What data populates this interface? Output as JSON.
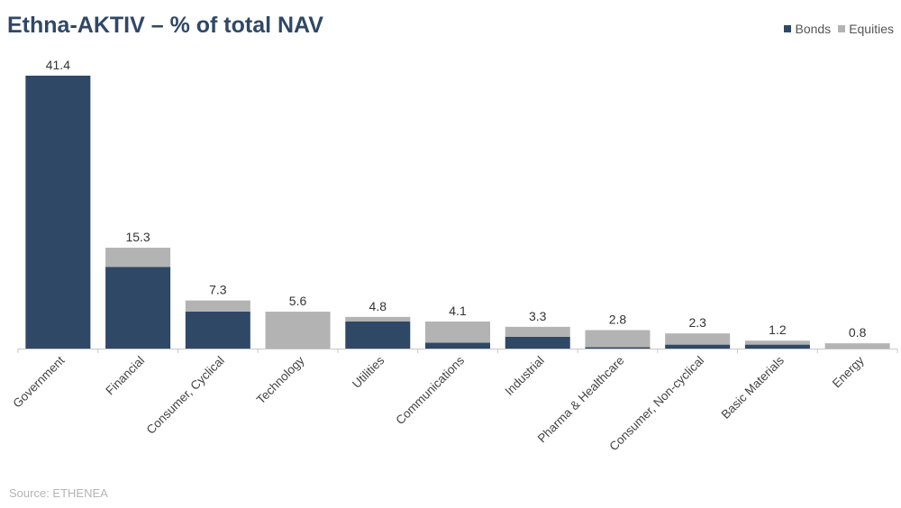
{
  "header": {
    "title": "Ethna-AKTIV – % of total NAV"
  },
  "footer": {
    "source": "Source: ETHENEA"
  },
  "colors": {
    "bonds": "#2f4866",
    "equities": "#b3b3b3",
    "title": "#2f4866"
  },
  "chart_data": {
    "type": "bar",
    "stacked": true,
    "title": "Ethna-AKTIV – % of total NAV",
    "categories": [
      "Government",
      "Financial",
      "Consumer, Cyclical",
      "Technology",
      "Utilities",
      "Communications",
      "Industrial",
      "Pharma & Healthcare",
      "Consumer, Non-cyclical",
      "Basic Materials",
      "Energy"
    ],
    "series": [
      {
        "name": "Bonds",
        "values": [
          41.4,
          12.4,
          5.6,
          0.0,
          4.1,
          0.9,
          1.8,
          0.2,
          0.6,
          0.6,
          0.0
        ]
      },
      {
        "name": "Equities",
        "values": [
          0.0,
          2.9,
          1.7,
          5.6,
          0.7,
          3.2,
          1.5,
          2.6,
          1.7,
          0.6,
          0.8
        ]
      }
    ],
    "totals": [
      "41.4",
      "15.3",
      "7.3",
      "5.6",
      "4.8",
      "4.1",
      "3.3",
      "2.8",
      "2.3",
      "1.2",
      "0.8"
    ],
    "ylim": [
      0,
      42
    ],
    "grid": false,
    "legend_position": "top-right",
    "xlabel": "",
    "ylabel": ""
  }
}
